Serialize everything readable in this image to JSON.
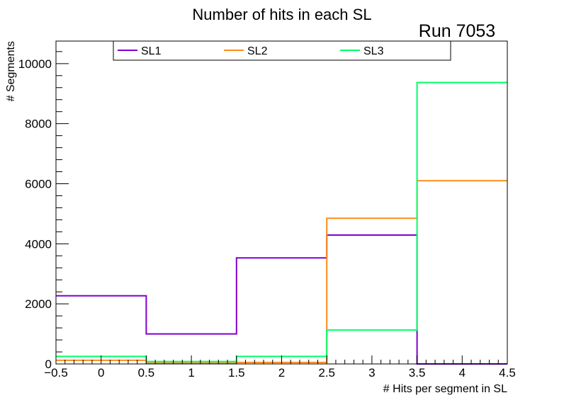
{
  "chart_data": {
    "type": "histogram-step",
    "title": "Number of hits in each SL",
    "annotation": "Run 7053",
    "xlabel": "# Hits per segment in SL",
    "ylabel": "# Segments",
    "xlim": [
      -0.5,
      4.5
    ],
    "ylim": [
      0,
      10750
    ],
    "bin_edges": [
      -0.5,
      0.5,
      1.5,
      2.5,
      3.5,
      4.5
    ],
    "x_ticks": [
      -0.5,
      0,
      0.5,
      1,
      1.5,
      2,
      2.5,
      3,
      3.5,
      4,
      4.5
    ],
    "x_tick_labels": [
      "−0.5",
      "0",
      "0.5",
      "1",
      "1.5",
      "2",
      "2.5",
      "3",
      "3.5",
      "4",
      "4.5"
    ],
    "y_ticks": [
      0,
      2000,
      4000,
      6000,
      8000,
      10000
    ],
    "y_tick_labels": [
      "0",
      "2000",
      "4000",
      "6000",
      "8000",
      "10000"
    ],
    "legend_position": "top",
    "series": [
      {
        "name": "SL1",
        "color": "#8000d0",
        "values": [
          2270,
          1000,
          3530,
          4290,
          0
        ]
      },
      {
        "name": "SL2",
        "color": "#ff8c1a",
        "values": [
          120,
          30,
          50,
          4850,
          6100
        ]
      },
      {
        "name": "SL3",
        "color": "#00ff66",
        "values": [
          250,
          80,
          250,
          1130,
          9370
        ]
      }
    ]
  }
}
